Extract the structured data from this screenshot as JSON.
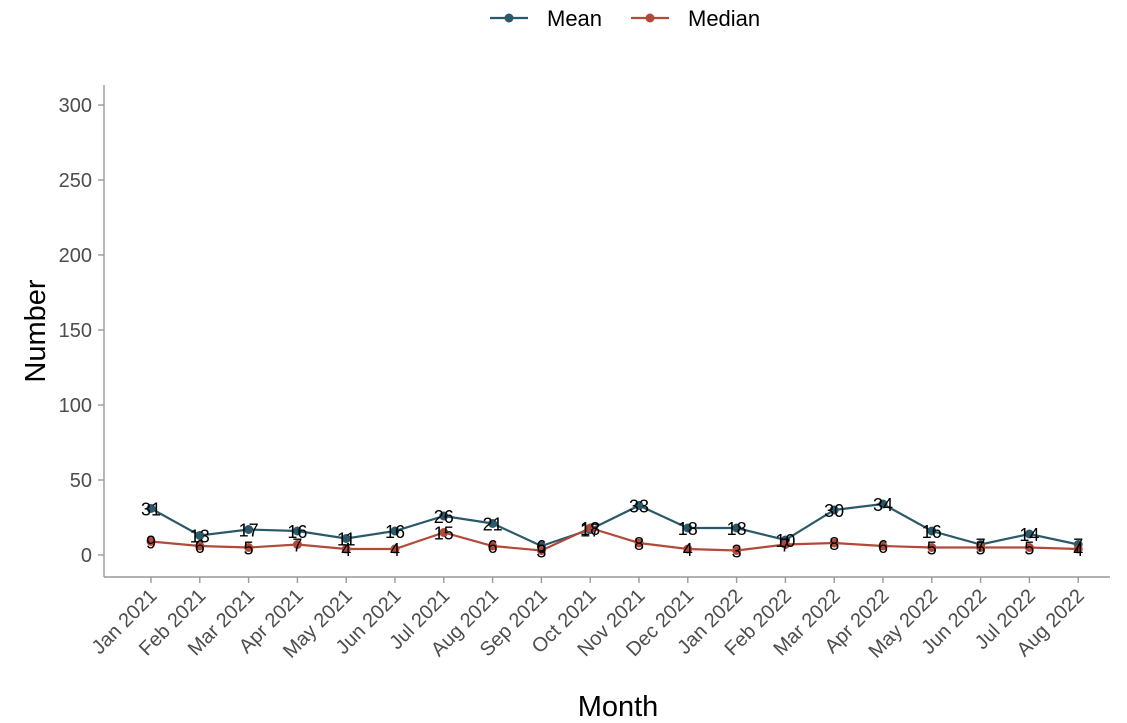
{
  "chart_data": {
    "type": "line",
    "xlabel": "Month",
    "ylabel": "Number",
    "ylim": [
      0,
      310
    ],
    "yticks": [
      0,
      50,
      100,
      150,
      200,
      250,
      300
    ],
    "grid": false,
    "legend_position": "top",
    "categories": [
      "Jan 2021",
      "Feb 2021",
      "Mar 2021",
      "Apr 2021",
      "May 2021",
      "Jun 2021",
      "Jul 2021",
      "Aug 2021",
      "Sep 2021",
      "Oct 2021",
      "Nov 2021",
      "Dec 2021",
      "Jan 2022",
      "Feb 2022",
      "Mar 2022",
      "Apr 2022",
      "May 2022",
      "Jun 2022",
      "Jul 2022",
      "Aug 2022"
    ],
    "series": [
      {
        "name": "Mean",
        "color": "#2a5a6a",
        "values": [
          31,
          13,
          17,
          16,
          11,
          16,
          26,
          21,
          6,
          17,
          33,
          18,
          18,
          10,
          30,
          34,
          16,
          7,
          14,
          7
        ]
      },
      {
        "name": "Median",
        "color": "#b24a3a",
        "values": [
          9,
          6,
          5,
          7,
          4,
          4,
          15,
          6,
          3,
          18,
          8,
          4,
          3,
          7,
          8,
          6,
          5,
          5,
          5,
          4
        ]
      }
    ]
  }
}
